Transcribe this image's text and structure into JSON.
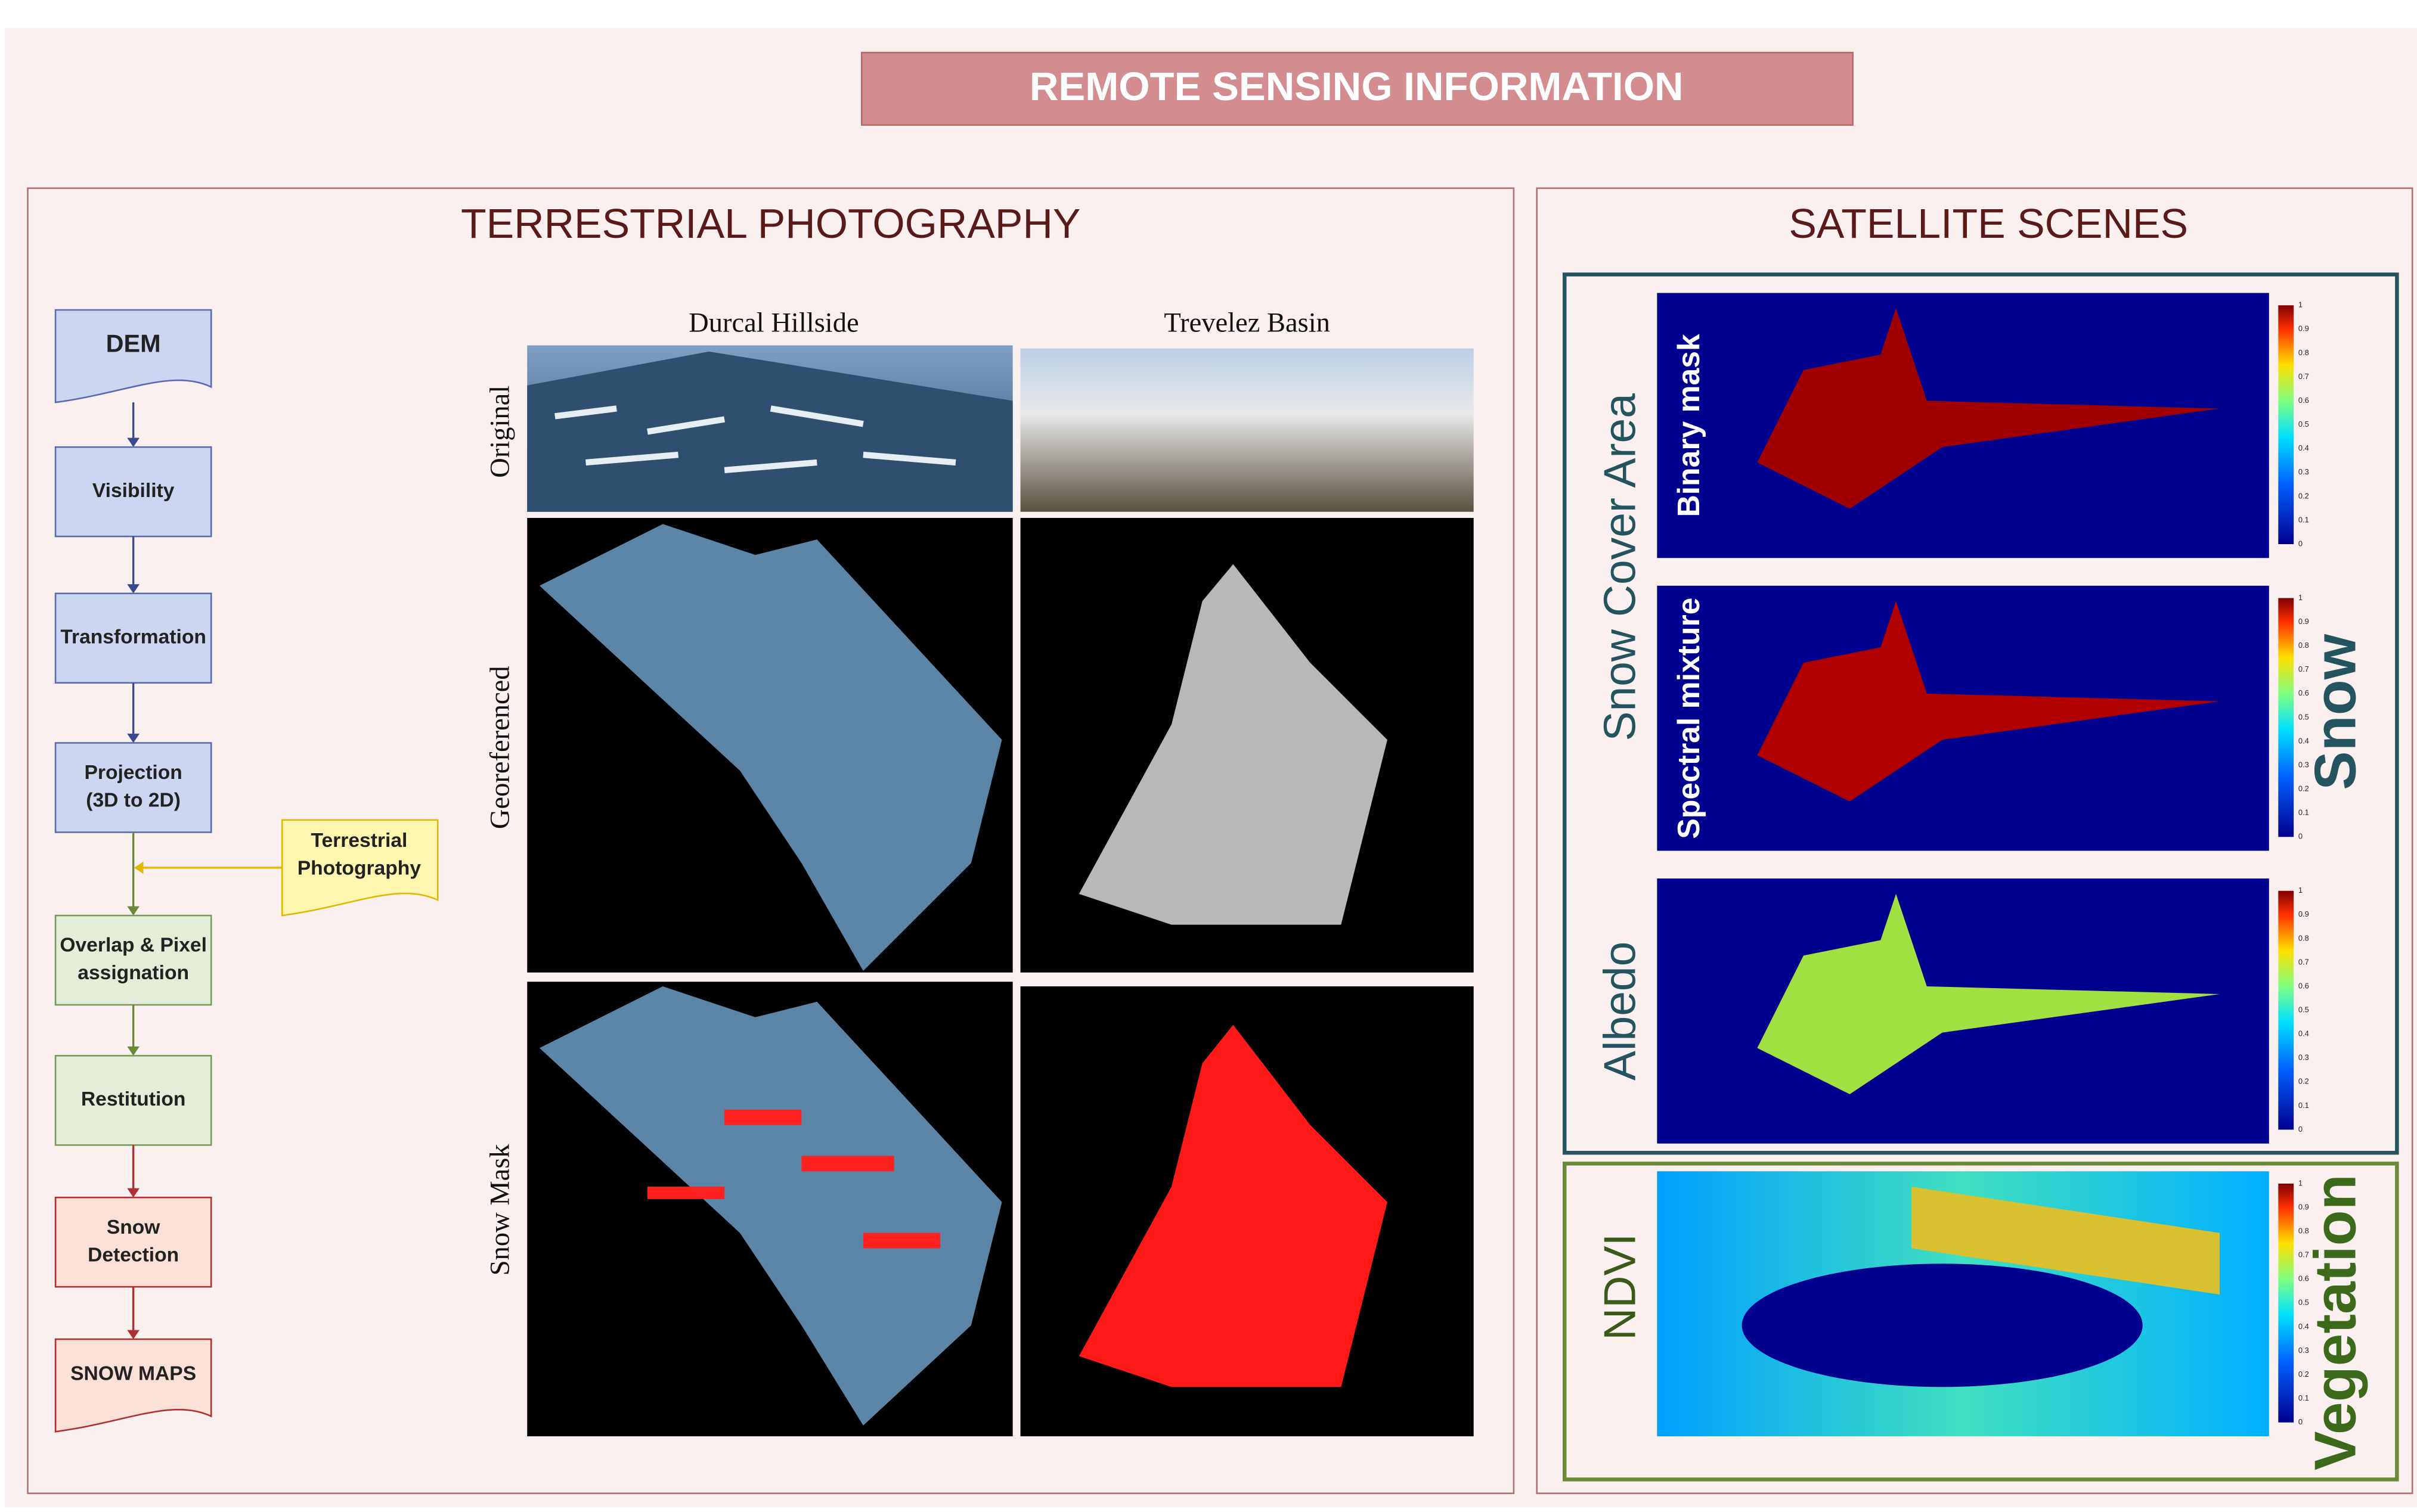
{
  "header": {
    "title": "REMOTE SENSING INFORMATION"
  },
  "terrestrial": {
    "title": "TERRESTRIAL PHOTOGRAPHY",
    "flowchart": {
      "nodes": [
        {
          "lines": [
            "DEM"
          ]
        },
        {
          "lines": [
            "Visibility"
          ]
        },
        {
          "lines": [
            "Transformation"
          ]
        },
        {
          "lines": [
            "Projection",
            "(3D to 2D)"
          ]
        },
        {
          "lines": [
            "Overlap & Pixel",
            "assignation"
          ]
        },
        {
          "lines": [
            "Restitution"
          ]
        },
        {
          "lines": [
            "Snow",
            "Detection"
          ]
        },
        {
          "lines": [
            "SNOW MAPS"
          ]
        }
      ],
      "input": {
        "lines": [
          "Terrestrial",
          "Photography"
        ]
      }
    },
    "columns": [
      "Durcal Hillside",
      "Trevelez Basin"
    ],
    "rows": [
      "Original",
      "Georeferenced",
      "Snow Mask"
    ]
  },
  "satellite": {
    "title": "SATELLITE SCENES",
    "group_label": "Snow Cover Area",
    "panels": [
      "Binary mask",
      "Spectral mixture",
      "Albedo",
      "NDVI"
    ],
    "categories": [
      "Snow",
      "Vegetation"
    ],
    "colorbar_ticks": [
      "0",
      "0.1",
      "0.2",
      "0.3",
      "0.4",
      "0.5",
      "0.6",
      "0.7",
      "0.8",
      "0.9",
      "1"
    ]
  }
}
